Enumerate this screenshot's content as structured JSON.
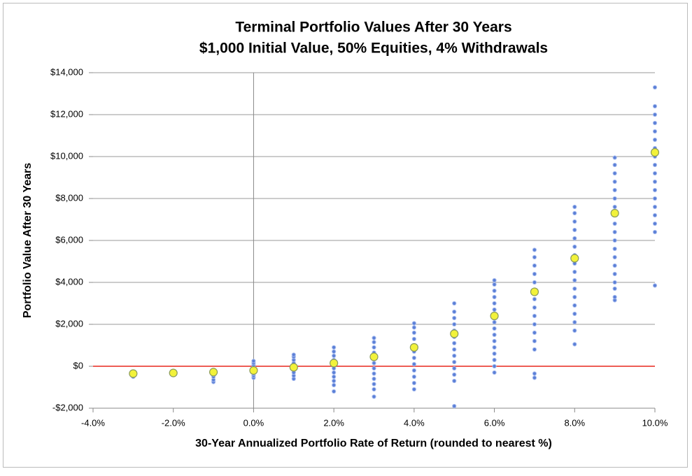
{
  "chart_data": {
    "type": "scatter",
    "title": "Terminal Portfolio Values After 30 Years",
    "subtitle": "$1,000 Initial Value, 50% Equities, 4% Withdrawals",
    "x_label": "30-Year Annualized Portfolio Rate of Return (rounded to nearest %)",
    "y_label": "Portfolio Value After 30 Years",
    "xlim": [
      -4,
      10
    ],
    "ylim": [
      -2000,
      14000
    ],
    "xticks": [
      {
        "value": -4,
        "label": "-4.0%"
      },
      {
        "value": -2,
        "label": "-2.0%"
      },
      {
        "value": 0,
        "label": "0.0%"
      },
      {
        "value": 2,
        "label": "2.0%"
      },
      {
        "value": 4,
        "label": "4.0%"
      },
      {
        "value": 6,
        "label": "6.0%"
      },
      {
        "value": 8,
        "label": "8.0%"
      },
      {
        "value": 10,
        "label": "10.0%"
      }
    ],
    "yticks": [
      {
        "value": -2000,
        "label": "-$2,000"
      },
      {
        "value": 0,
        "label": "$0"
      },
      {
        "value": 2000,
        "label": "$2,000"
      },
      {
        "value": 4000,
        "label": "$4,000"
      },
      {
        "value": 6000,
        "label": "$6,000"
      },
      {
        "value": 8000,
        "label": "$8,000"
      },
      {
        "value": 10000,
        "label": "$10,000"
      },
      {
        "value": 12000,
        "label": "$12,000"
      },
      {
        "value": 14000,
        "label": "$14,000"
      }
    ],
    "grid": true,
    "zero_line_color": "#e8271c",
    "series": [
      {
        "color": "#5b7fd6",
        "marker": "dot",
        "x": [
          -3,
          -3,
          -3,
          -3,
          -3,
          -2,
          -2,
          -2,
          -1,
          -1,
          -1,
          -1,
          -1,
          -1,
          -1,
          0,
          0,
          0,
          0,
          0,
          0,
          0,
          0,
          0,
          1,
          1,
          1,
          1,
          1,
          1,
          1,
          1,
          1,
          2,
          2,
          2,
          2,
          2,
          2,
          2,
          2,
          2,
          2,
          2,
          3,
          3,
          3,
          3,
          3,
          3,
          3,
          3,
          3,
          3,
          3,
          3,
          4,
          4,
          4,
          4,
          4,
          4,
          4,
          4,
          4,
          4,
          4,
          4,
          5,
          5,
          5,
          5,
          5,
          5,
          5,
          5,
          5,
          5,
          5,
          5,
          5,
          5,
          6,
          6,
          6,
          6,
          6,
          6,
          6,
          6,
          6,
          6,
          6,
          6,
          6,
          6,
          6,
          6,
          7,
          7,
          7,
          7,
          7,
          7,
          7,
          7,
          7,
          7,
          7,
          7,
          7,
          7,
          7,
          8,
          8,
          8,
          8,
          8,
          8,
          8,
          8,
          8,
          8,
          8,
          8,
          8,
          8,
          8,
          8,
          8,
          9,
          9,
          9,
          9,
          9,
          9,
          9,
          9,
          9,
          9,
          9,
          9,
          9,
          9,
          9,
          9,
          9,
          9,
          9,
          10,
          10,
          10,
          10,
          10,
          10,
          10,
          10,
          10,
          10,
          10,
          10,
          10,
          10,
          10,
          10,
          10,
          10
        ],
        "values": [
          -500,
          -420,
          -380,
          -330,
          -280,
          -350,
          -330,
          -310,
          -750,
          -650,
          -500,
          -400,
          -300,
          -250,
          -200,
          -550,
          -450,
          -350,
          -250,
          -150,
          -50,
          50,
          150,
          250,
          -600,
          -450,
          -300,
          -150,
          0,
          150,
          300,
          450,
          550,
          -1200,
          -900,
          -700,
          -500,
          -300,
          -100,
          100,
          300,
          500,
          700,
          900,
          -1450,
          -1100,
          -850,
          -600,
          -350,
          -100,
          150,
          400,
          650,
          900,
          1150,
          1350,
          -1100,
          -800,
          -500,
          -200,
          100,
          400,
          700,
          1000,
          1300,
          1600,
          1850,
          2050,
          -1900,
          -700,
          -400,
          -100,
          200,
          500,
          800,
          1100,
          1400,
          1700,
          2000,
          2300,
          2600,
          3000,
          -300,
          0,
          300,
          600,
          900,
          1200,
          1500,
          1800,
          2100,
          2400,
          2700,
          3000,
          3300,
          3600,
          3900,
          4100,
          -550,
          -350,
          800,
          1200,
          1600,
          2000,
          2400,
          2800,
          3200,
          3600,
          4000,
          4400,
          4800,
          5200,
          5550,
          1050,
          1700,
          2100,
          2500,
          2900,
          3300,
          3700,
          4100,
          4500,
          4900,
          5300,
          5700,
          6100,
          6500,
          6900,
          7300,
          7600,
          3150,
          3300,
          3700,
          4000,
          4400,
          4800,
          5200,
          5600,
          6000,
          6400,
          6800,
          7200,
          7600,
          8000,
          8400,
          8800,
          9200,
          9600,
          9950,
          3850,
          6400,
          6800,
          7200,
          7600,
          8000,
          8400,
          8800,
          9200,
          9600,
          10000,
          10400,
          10800,
          11200,
          11600,
          12000,
          12400,
          13300
        ]
      },
      {
        "color": "#f2f23a",
        "marker": "circle",
        "x": [
          -3,
          -2,
          -1,
          0,
          1,
          2,
          3,
          4,
          5,
          6,
          7,
          8,
          9,
          10
        ],
        "values": [
          -350,
          -320,
          -280,
          -200,
          -50,
          150,
          450,
          900,
          1550,
          2400,
          3550,
          5150,
          7300,
          10200
        ]
      }
    ]
  }
}
